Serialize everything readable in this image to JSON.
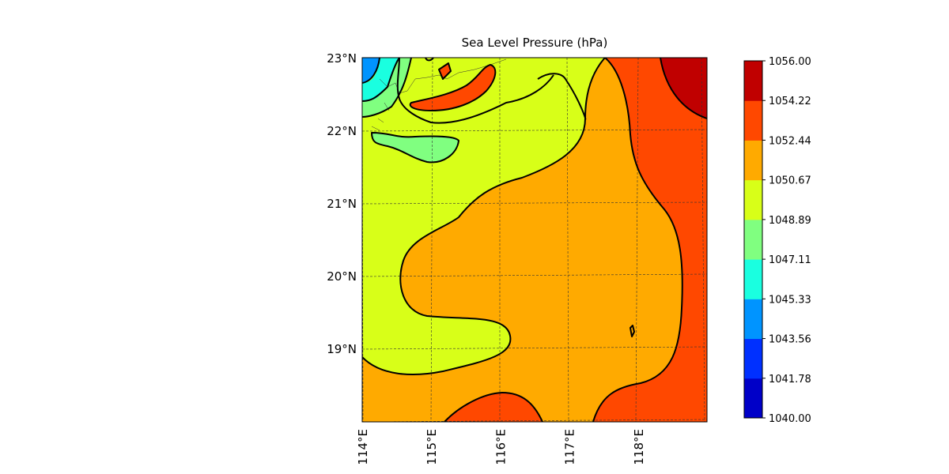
{
  "chart_data": {
    "type": "contourf",
    "title": "Sea Level Pressure (hPa)",
    "x_ticks": [
      "114°E",
      "115°E",
      "116°E",
      "117°E",
      "118°E"
    ],
    "y_ticks": [
      "23°N",
      "22°N",
      "21°N",
      "20°N",
      "19°N"
    ],
    "x_tick_values": [
      114,
      115,
      116,
      117,
      118
    ],
    "y_tick_values": [
      23,
      22,
      21,
      20,
      19
    ],
    "xlim": [
      114,
      119
    ],
    "ylim": [
      18,
      23
    ],
    "grid": true,
    "colorbar": {
      "levels": [
        "1040.00",
        "1041.78",
        "1043.56",
        "1045.33",
        "1047.11",
        "1048.89",
        "1050.67",
        "1052.44",
        "1054.22",
        "1056.00"
      ],
      "colors": [
        "#0000c8",
        "#0030ff",
        "#0094ff",
        "#1affe0",
        "#80ff80",
        "#d8ff18",
        "#ffaa00",
        "#ff4800",
        "#c00000"
      ]
    }
  }
}
